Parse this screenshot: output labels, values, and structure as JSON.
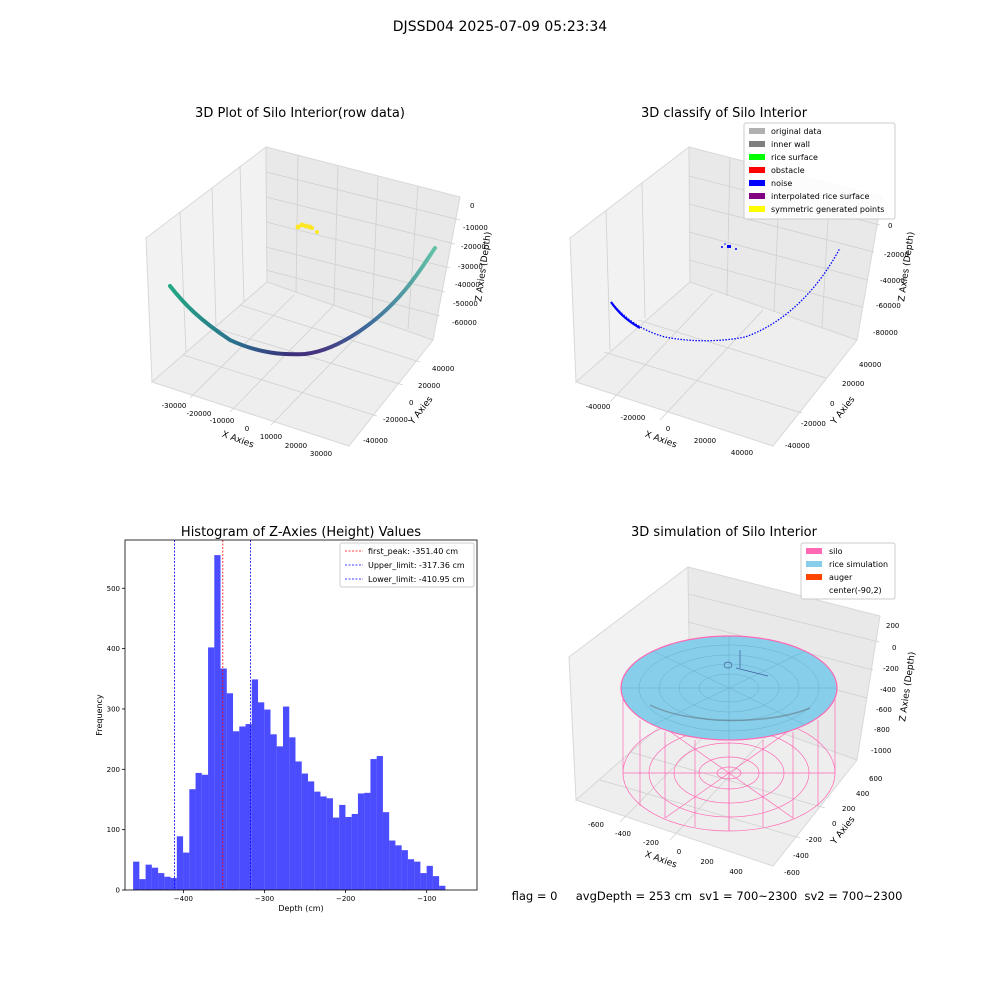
{
  "figure": {
    "suptitle": "DJSSD04 2025-07-09 05:23:34",
    "status_line": "flag = 0     avgDepth = 253 cm  sv1 = 700~2300  sv2 = 700~2300"
  },
  "chart_data": [
    {
      "type": "scatter",
      "projection": "3d",
      "title": "3D Plot of Silo Interior(row data)",
      "xlabel": "X Axies",
      "ylabel": "Y Axies",
      "zlabel": "Z Axies (Depth)",
      "x_ticks": [
        -30000,
        -20000,
        -10000,
        0,
        10000,
        20000,
        30000
      ],
      "y_ticks": [
        -40000,
        -20000,
        0,
        20000,
        40000
      ],
      "z_ticks": [
        0,
        -10000,
        -20000,
        -30000,
        -40000,
        -50000,
        -60000
      ],
      "colormap": "viridis",
      "series": [
        {
          "points": [
            [
              -35000,
              -5000,
              -22000
            ],
            [
              -30000,
              -12000,
              -40000
            ],
            [
              -22000,
              -18000,
              -52000
            ],
            [
              -12000,
              -20000,
              -58000
            ],
            [
              0,
              -20000,
              -60000
            ],
            [
              10000,
              -18000,
              -58000
            ],
            [
              20000,
              -12000,
              -52000
            ],
            [
              28000,
              -3000,
              -42000
            ],
            [
              32000,
              6000,
              -32000
            ],
            [
              34000,
              14000,
              -20000
            ]
          ]
        },
        {
          "points": [
            [
              -2000,
              20000,
              -12000
            ],
            [
              0,
              22000,
              -12000
            ],
            [
              2000,
              21000,
              -13000
            ]
          ]
        }
      ]
    },
    {
      "type": "scatter",
      "projection": "3d",
      "title": "3D classify of Silo Interior",
      "xlabel": "X Axies",
      "ylabel": "Y Axies",
      "zlabel": "Z Axies (Depth)",
      "x_ticks": [
        -40000,
        -20000,
        0,
        20000,
        40000
      ],
      "y_ticks": [
        -40000,
        -20000,
        0,
        20000,
        40000
      ],
      "z_ticks": [
        0,
        -20000,
        -40000,
        -60000,
        -80000
      ],
      "legend": {
        "location": "upper right",
        "entries": [
          {
            "label": "original data",
            "color": "#b0b0b0"
          },
          {
            "label": "inner wall",
            "color": "#808080"
          },
          {
            "label": "rice surface",
            "color": "#00ff00"
          },
          {
            "label": "obstacle",
            "color": "#ff0000"
          },
          {
            "label": "noise",
            "color": "#0000ff"
          },
          {
            "label": "interpolated rice surface",
            "color": "#800080"
          },
          {
            "label": "symmetric generated points",
            "color": "#ffff00"
          }
        ]
      },
      "series": [
        {
          "name": "noise",
          "points": [
            [
              -40000,
              -5000,
              -40000
            ],
            [
              -30000,
              -15000,
              -65000
            ],
            [
              -15000,
              -20000,
              -78000
            ],
            [
              0,
              -22000,
              -80000
            ],
            [
              15000,
              -18000,
              -75000
            ],
            [
              28000,
              -8000,
              -60000
            ],
            [
              38000,
              8000,
              -35000
            ],
            [
              42000,
              18000,
              -22000
            ],
            [
              -2000,
              20000,
              -25000
            ]
          ]
        }
      ]
    },
    {
      "type": "bar",
      "title": "Histogram of Z-Axies (Height) Values",
      "xlabel": "Depth (cm)",
      "ylabel": "Frequency",
      "xlim": [
        -472,
        -38
      ],
      "ylim": [
        0,
        580
      ],
      "x_ticks": [
        -400,
        -300,
        -200,
        -100
      ],
      "y_ticks": [
        0,
        100,
        200,
        300,
        400,
        500
      ],
      "bin_start": -462,
      "bin_width": 7.7,
      "color": "#0000ff",
      "values": [
        47,
        18,
        42,
        37,
        28,
        22,
        20,
        89,
        62,
        167,
        194,
        191,
        402,
        555,
        367,
        326,
        263,
        271,
        275,
        349,
        311,
        299,
        258,
        238,
        304,
        253,
        213,
        193,
        180,
        163,
        155,
        152,
        120,
        141,
        121,
        126,
        160,
        161,
        217,
        222,
        129,
        82,
        74,
        66,
        51,
        47,
        28,
        40,
        23,
        7
      ],
      "vlines": [
        {
          "label": "first_peak: -351.40 cm",
          "x": -351.4,
          "color": "#ff0000"
        },
        {
          "label": "Upper_limit: -317.36 cm",
          "x": -317.36,
          "color": "#0000ff"
        },
        {
          "label": "Lower_limit: -410.95 cm",
          "x": -410.95,
          "color": "#0000ff"
        }
      ],
      "legend": {
        "location": "upper right"
      }
    },
    {
      "type": "surface",
      "projection": "3d",
      "title": "3D simulation of Silo Interior",
      "xlabel": "X Axies",
      "ylabel": "Y Axies",
      "zlabel": "Z Axies (Depth)",
      "x_ticks": [
        -600,
        -400,
        -200,
        0,
        200,
        400
      ],
      "y_ticks": [
        -600,
        -400,
        -200,
        0,
        200,
        400,
        600
      ],
      "z_ticks": [
        200,
        0,
        -200,
        -400,
        -600,
        -800,
        -1000
      ],
      "legend": {
        "location": "upper right",
        "entries": [
          {
            "label": "silo",
            "color": "#ff69b4"
          },
          {
            "label": "rice simulation",
            "color": "#87ceeb"
          },
          {
            "label": "auger",
            "color": "#ff4500"
          },
          {
            "label": "center(-90,2)",
            "color": ""
          }
        ]
      }
    }
  ]
}
